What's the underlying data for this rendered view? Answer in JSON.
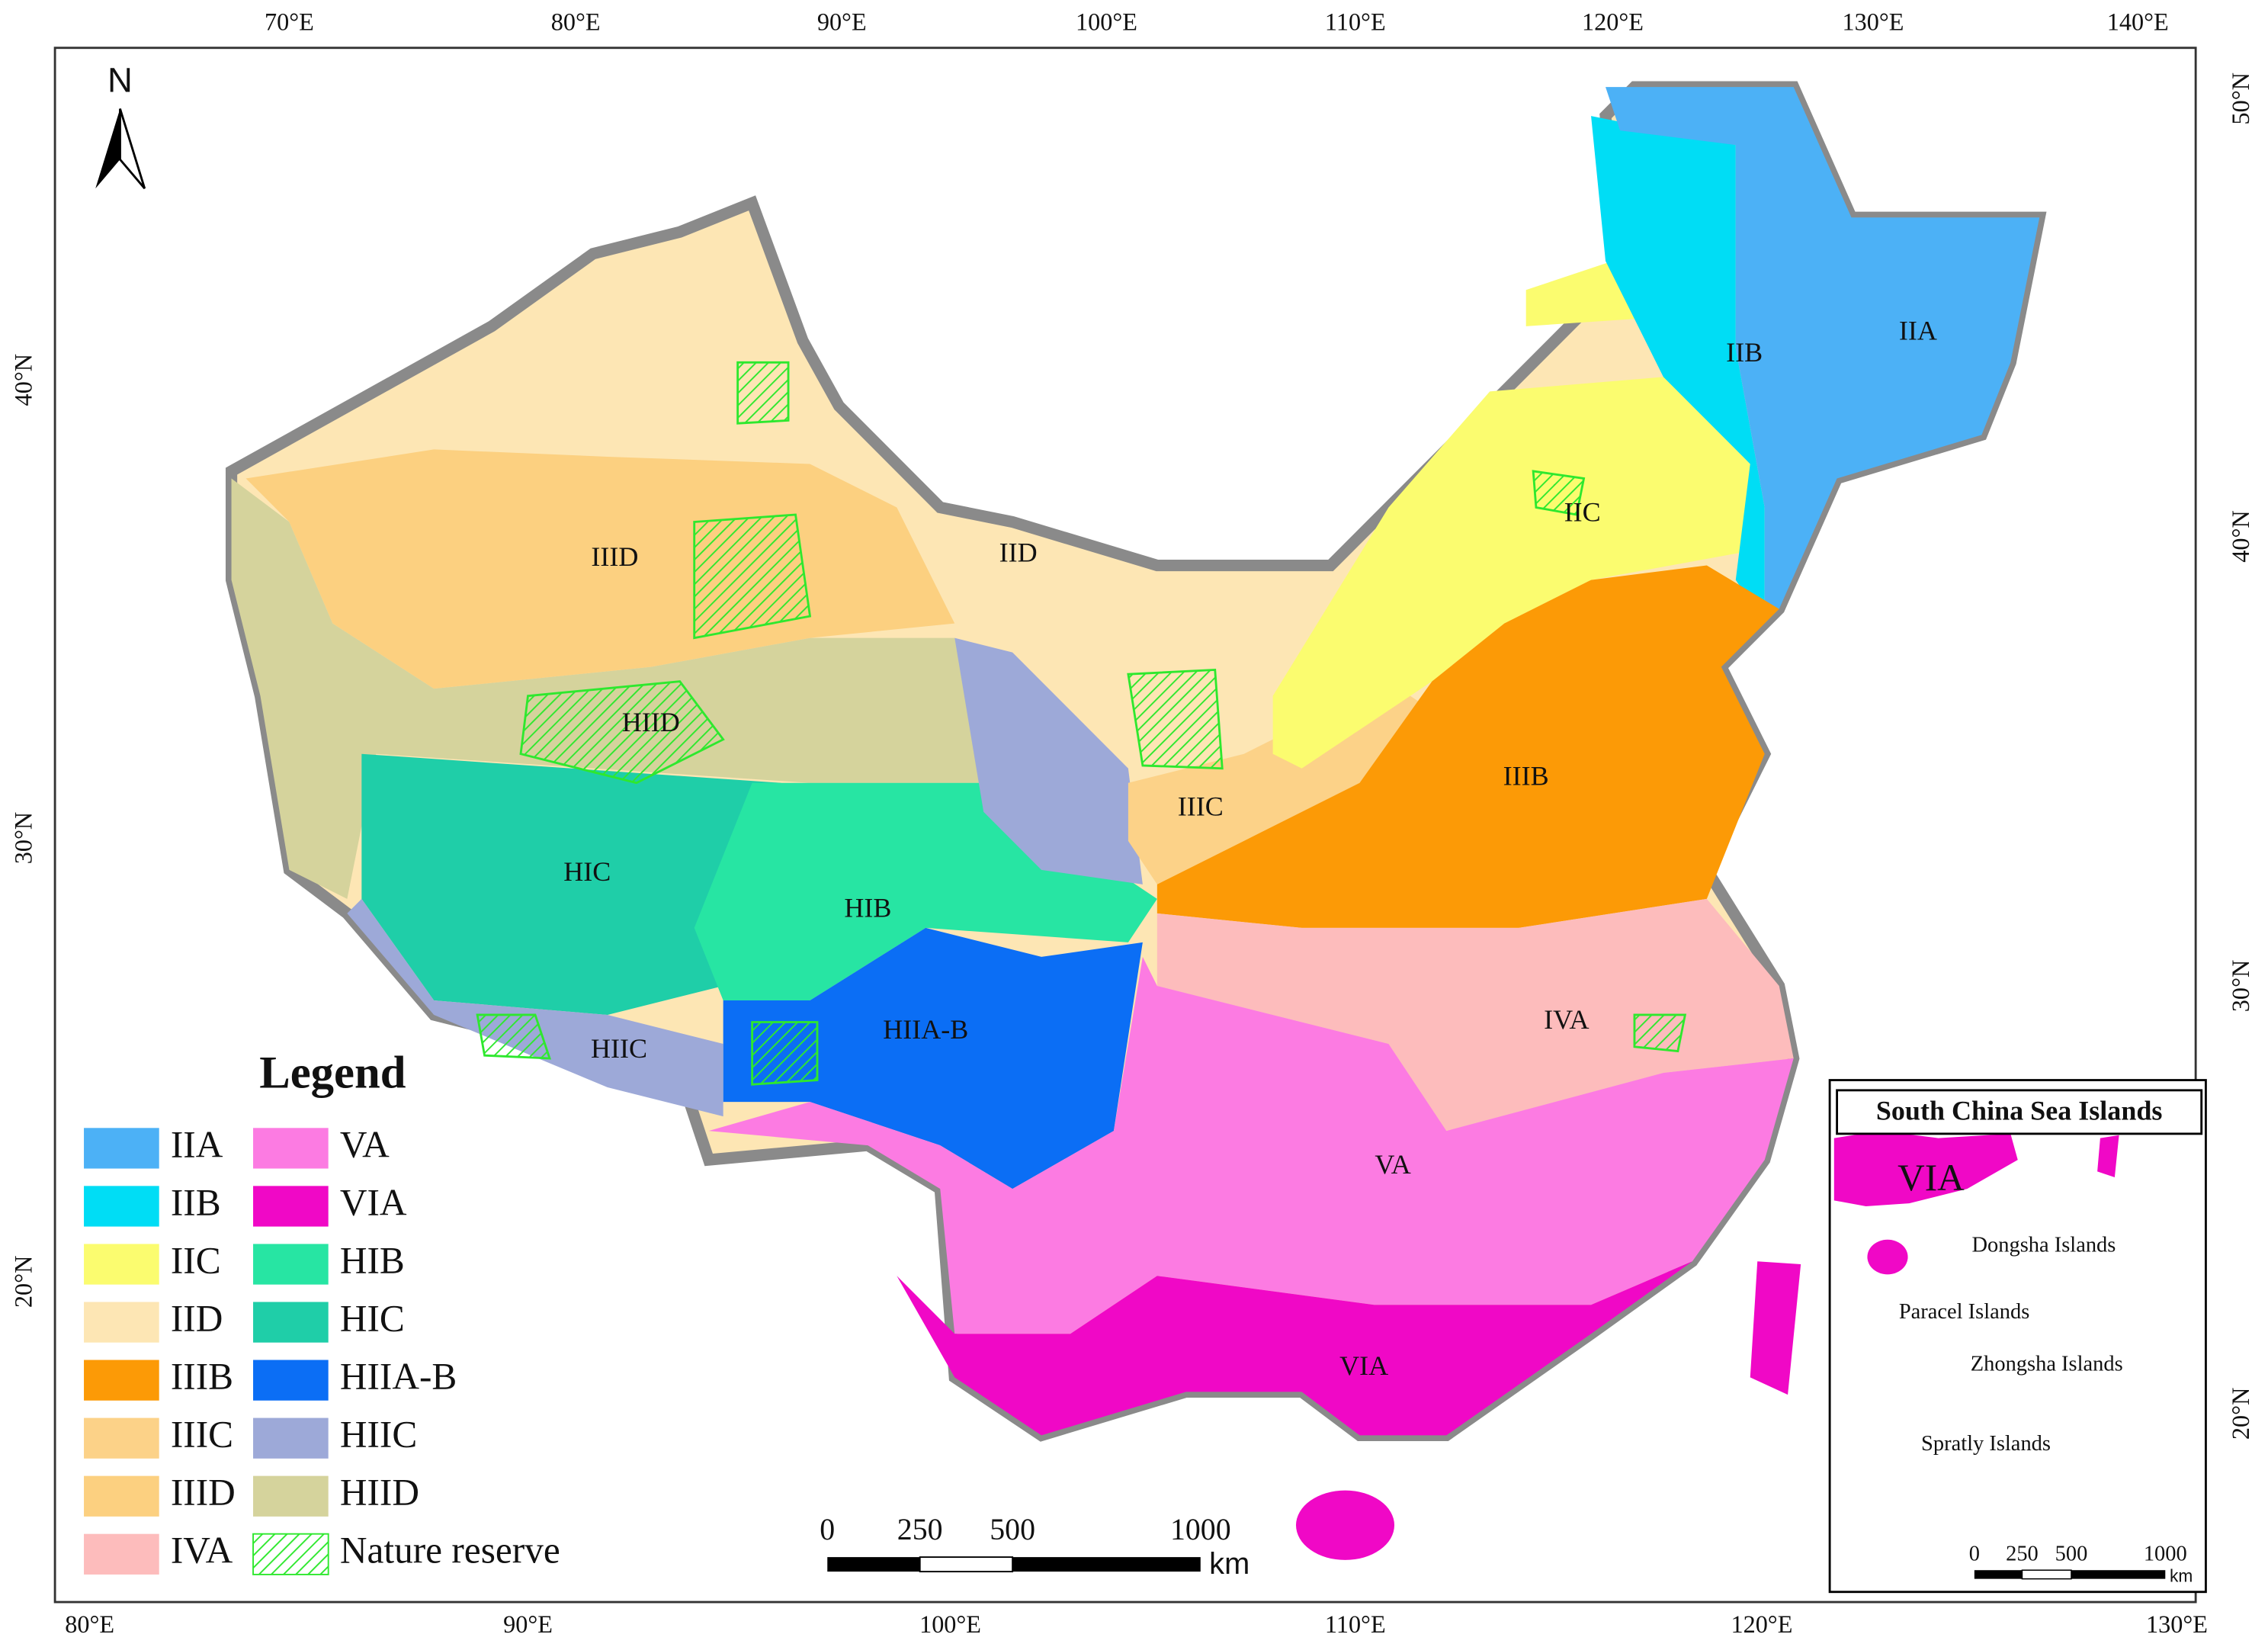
{
  "north_arrow": "N",
  "top_axis": [
    "70°E",
    "80°E",
    "90°E",
    "100°E",
    "110°E",
    "120°E",
    "130°E",
    "140°E"
  ],
  "bottom_axis": [
    "80°E",
    "90°E",
    "100°E",
    "110°E",
    "120°E",
    "130°E"
  ],
  "left_axis": [
    "40°N",
    "30°N",
    "20°N"
  ],
  "right_axis": [
    "50°N",
    "40°N",
    "30°N",
    "20°N"
  ],
  "region_labels": [
    "IIA",
    "IIB",
    "IIC",
    "IID",
    "IIID",
    "HIID",
    "HIC",
    "HIB",
    "HIIA-B",
    "HIIC",
    "IIIC",
    "IIIB",
    "IVA",
    "VA",
    "VIA"
  ],
  "legend": {
    "title": "Legend",
    "items": [
      {
        "label": "IIA",
        "color": "#4cb1f6"
      },
      {
        "label": "IIB",
        "color": "#00ddf5"
      },
      {
        "label": "IIC",
        "color": "#fbfc6f"
      },
      {
        "label": "IID",
        "color": "#fde6b4"
      },
      {
        "label": "IIIB",
        "color": "#fc9a06"
      },
      {
        "label": "IIIC",
        "color": "#fcd288"
      },
      {
        "label": "IIID",
        "color": "#fcd080"
      },
      {
        "label": "IVA",
        "color": "#fdbcbc"
      },
      {
        "label": "VA",
        "color": "#fc7be2"
      },
      {
        "label": "VIA",
        "color": "#f008c6"
      },
      {
        "label": "HIB",
        "color": "#27e5a3"
      },
      {
        "label": "HIC",
        "color": "#1fcea8"
      },
      {
        "label": "HIIA-B",
        "color": "#0b6ef5"
      },
      {
        "label": "HIIC",
        "color": "#9da9d8"
      },
      {
        "label": "HIID",
        "color": "#d5d39c"
      },
      {
        "label": "Nature reserve",
        "color": "#2ee82e"
      }
    ]
  },
  "scale_bar": {
    "ticks": [
      "0",
      "250",
      "500",
      "1000"
    ],
    "unit": "km"
  },
  "inset": {
    "title": "South China Sea Islands",
    "region_label": "VIA",
    "labels": [
      "Dongsha Islands",
      "Paracel Islands",
      "Zhongsha Islands",
      "Spratly Islands"
    ],
    "scale_bar": {
      "ticks": [
        "0",
        "250",
        "500",
        "1000"
      ],
      "unit": "km"
    }
  }
}
